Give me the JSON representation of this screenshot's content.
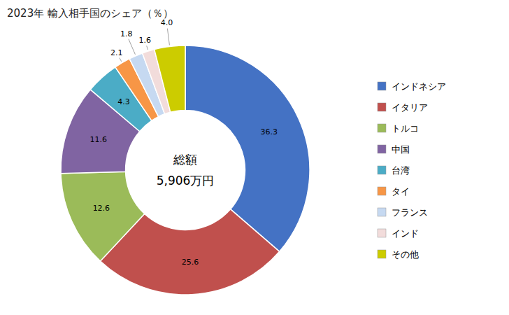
{
  "chart_data": {
    "type": "donut",
    "title": "2023年 輸入相手国のシェア（％）",
    "annotations": [
      "総額",
      "5,906万円"
    ],
    "categories": [
      "インドネシア",
      "イタリア",
      "トルコ",
      "中国",
      "台湾",
      "タイ",
      "フランス",
      "インド",
      "その他"
    ],
    "values": [
      36.3,
      25.6,
      12.6,
      11.6,
      4.3,
      2.1,
      1.8,
      1.6,
      4.0
    ],
    "value_labels": [
      "36.3",
      "25.6",
      "12.6",
      "11.6",
      "4.3",
      "2.1",
      "1.8",
      "1.6",
      "4.0"
    ],
    "colors": [
      "#4472C4",
      "#C0504D",
      "#9BBB59",
      "#8064A2",
      "#4BACC6",
      "#F79646",
      "#C6D9F1",
      "#F2DCDB",
      "#CCCC00"
    ],
    "data_labels": true,
    "legend": "right"
  }
}
